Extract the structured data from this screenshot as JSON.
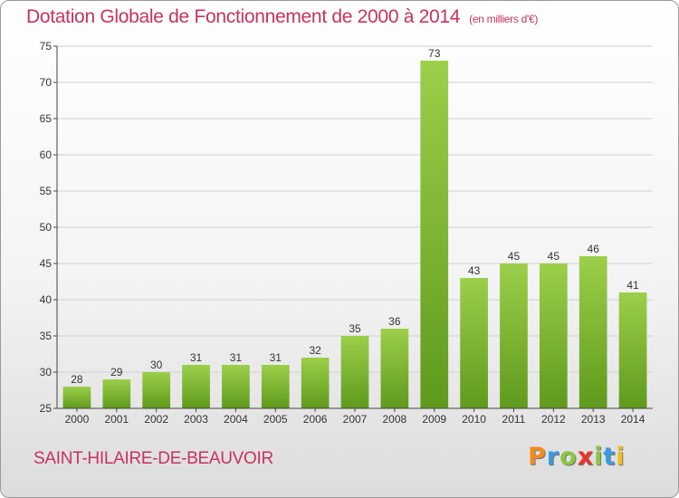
{
  "header": {
    "title": "Dotation Globale de Fonctionnement de 2000 à 2014",
    "unit": "(en milliers d'€)"
  },
  "footer": {
    "commune": "SAINT-HILAIRE-DE-BEAUVOIR",
    "logo_letters": [
      "P",
      "r",
      "o",
      "x",
      "i",
      "t",
      "i"
    ],
    "logo_colors": [
      "#f08c1e",
      "#3a9be0",
      "#8cc63f",
      "#e8352b",
      "#8cc63f",
      "#3a9be0",
      "#f0c020"
    ]
  },
  "chart_data": {
    "type": "bar",
    "title": "Dotation Globale de Fonctionnement de 2000 à 2014",
    "subtitle": "(en milliers d'€)",
    "categories": [
      "2000",
      "2001",
      "2002",
      "2003",
      "2004",
      "2005",
      "2006",
      "2007",
      "2008",
      "2009",
      "2010",
      "2011",
      "2012",
      "2013",
      "2014"
    ],
    "values": [
      28,
      29,
      30,
      31,
      31,
      31,
      32,
      35,
      36,
      73,
      43,
      45,
      45,
      46,
      41
    ],
    "ylim": [
      25,
      75
    ],
    "yticks": [
      25,
      30,
      35,
      40,
      45,
      50,
      55,
      60,
      65,
      70,
      75
    ],
    "grid": true,
    "bar_color_top": "#9ccf4a",
    "bar_color_bottom": "#5f9a1c",
    "grid_color": "#d0d0d0"
  }
}
